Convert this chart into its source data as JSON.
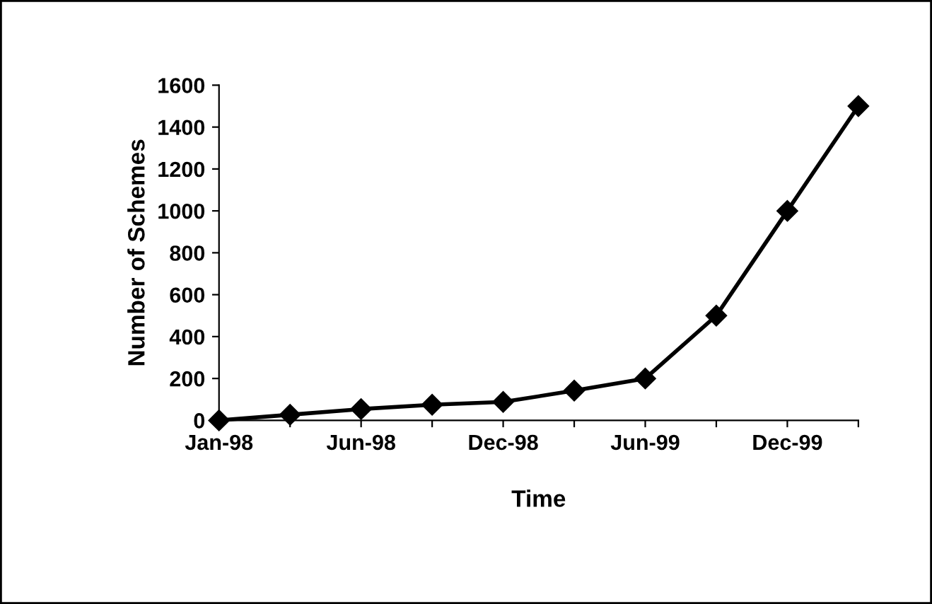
{
  "chart_data": {
    "type": "line",
    "xlabel": "Time",
    "ylabel": "Number of Schemes",
    "categories": [
      "Jan-98",
      null,
      "Jun-98",
      null,
      "Dec-98",
      null,
      "Jun-99",
      null,
      "Dec-99",
      null
    ],
    "series": [
      {
        "color": "#000000",
        "values": [
          0,
          27,
          54,
          75,
          88,
          142,
          200,
          500,
          1000,
          1500
        ]
      }
    ],
    "ylim": [
      0,
      1600
    ],
    "yticks": [
      0,
      200,
      400,
      600,
      800,
      1000,
      1200,
      1400,
      1600
    ],
    "marker": "diamond",
    "line_style": "solid",
    "grid": false,
    "legend": false
  }
}
